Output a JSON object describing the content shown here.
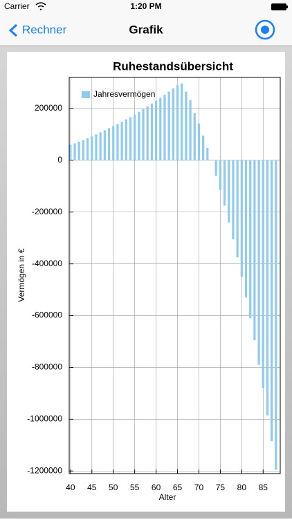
{
  "status": {
    "carrier": "Carrier",
    "time": "1:20 PM"
  },
  "nav": {
    "back": "Rechner",
    "title": "Grafik"
  },
  "chart_data": {
    "type": "bar",
    "title": "Ruhestandsübersicht",
    "x_label": "Alter",
    "y_label": "Vermögen in €",
    "x": [
      40,
      41,
      42,
      43,
      44,
      45,
      46,
      47,
      48,
      49,
      50,
      51,
      52,
      53,
      54,
      55,
      56,
      57,
      58,
      59,
      60,
      61,
      62,
      63,
      64,
      65,
      66,
      67,
      68,
      69,
      70,
      71,
      72,
      73,
      74,
      75,
      76,
      77,
      78,
      79,
      80,
      81,
      82,
      83,
      84,
      85,
      86,
      87,
      88
    ],
    "series": [
      {
        "name": "Jahresvermögen",
        "color": "#8ecbef",
        "values": [
          60000,
          65000,
          72000,
          78000,
          85000,
          92000,
          100000,
          108000,
          116000,
          124000,
          132000,
          140000,
          149000,
          158000,
          167000,
          177000,
          187000,
          197000,
          208000,
          219000,
          230000,
          241000,
          253000,
          265000,
          278000,
          290000,
          297000,
          265000,
          232000,
          182000,
          142000,
          95000,
          48000,
          0,
          -60000,
          -115000,
          -175000,
          -240000,
          -305000,
          -375000,
          -450000,
          -530000,
          -610000,
          -695000,
          -790000,
          -880000,
          -985000,
          -1085000,
          -1195000
        ]
      }
    ],
    "xlim": [
      39.7,
      89
    ],
    "xticks": [
      40,
      45,
      50,
      55,
      60,
      65,
      70,
      75,
      80,
      85
    ],
    "ylim": [
      -1210000,
      320000
    ],
    "yticks": [
      -1200000,
      -1000000,
      -800000,
      -600000,
      -400000,
      -200000,
      0,
      200000
    ],
    "grid": true,
    "legend": "upper left"
  }
}
